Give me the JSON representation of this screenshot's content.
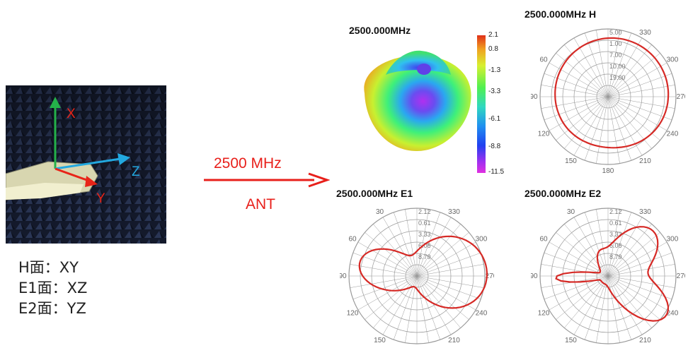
{
  "photo": {
    "axes": [
      {
        "label": "X",
        "color": "#e82418"
      },
      {
        "label": "Y",
        "color": "#e82418"
      },
      {
        "label": "Z",
        "color": "#22a8e0"
      }
    ]
  },
  "planes": [
    {
      "label": "H面：XY"
    },
    {
      "label": "E1面：XZ"
    },
    {
      "label": "E2面：YZ"
    }
  ],
  "arrow": {
    "top_label": "2500 MHz",
    "bottom_label": "ANT",
    "color": "#e8201b"
  },
  "pattern_3d": {
    "title": "2500.000MHz",
    "colorbar_ticks": [
      "2.1",
      "0.8",
      "-1.3",
      "-3.3",
      "-6.1",
      "-8.8",
      "-11.5"
    ]
  },
  "polar_plots": [
    {
      "title": "2500.000MHz  H",
      "radial_labels": [
        "5.00",
        "1.00",
        "7.00",
        "10.00",
        "19.00"
      ],
      "angle_labels": [
        "330",
        "300",
        "270",
        "240",
        "210",
        "180",
        "150",
        "120",
        "90",
        "60"
      ]
    },
    {
      "title": "2500.000MHz  E1",
      "radial_labels": [
        "2.12",
        "0.61",
        "3.33",
        "6.06",
        "8.79"
      ],
      "angle_labels": [
        "30",
        "330",
        "300",
        "270",
        "240",
        "210",
        "150",
        "120",
        "90",
        "60"
      ]
    },
    {
      "title": "2500.000MHz  E2",
      "radial_labels": [
        "2.12",
        "0.61",
        "3.33",
        "6.06",
        "8.79"
      ],
      "angle_labels": [
        "30",
        "330",
        "300",
        "270",
        "240",
        "210",
        "150",
        "120",
        "90",
        "60"
      ]
    }
  ],
  "colors": {
    "pattern_line": "#d62a26",
    "grid": "#9a9a9a"
  }
}
